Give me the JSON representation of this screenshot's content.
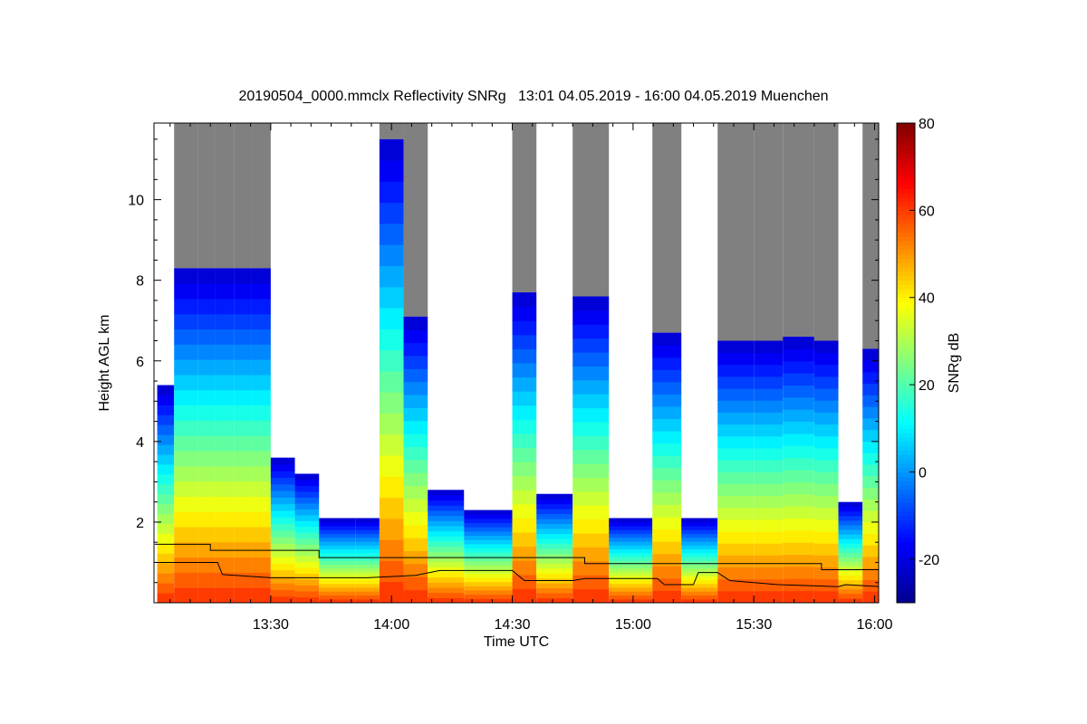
{
  "chart_data": {
    "type": "heatmap",
    "title": "20190504_0000.mmclx Reflectivity SNRg   13:01 04.05.2019 - 16:00 04.05.2019 Muenchen",
    "xlabel": "Time UTC",
    "ylabel": "Height AGL km",
    "colorbar_label": "SNRg dB",
    "x_range_min_utc": [
      13.0167,
      16.0167
    ],
    "y_range_km": [
      0,
      11.9
    ],
    "x_ticks": [
      {
        "label": "13:30",
        "value": 13.5
      },
      {
        "label": "14:00",
        "value": 14.0
      },
      {
        "label": "14:30",
        "value": 14.5
      },
      {
        "label": "15:00",
        "value": 15.0
      },
      {
        "label": "15:30",
        "value": 15.5
      },
      {
        "label": "16:00",
        "value": 16.0
      }
    ],
    "y_ticks": [
      {
        "label": "2",
        "value": 2
      },
      {
        "label": "4",
        "value": 4
      },
      {
        "label": "6",
        "value": 6
      },
      {
        "label": "8",
        "value": 8
      },
      {
        "label": "10",
        "value": 10
      }
    ],
    "colorbar_range": [
      -30,
      80
    ],
    "colorbar_ticks": [
      "-20",
      "0",
      "20",
      "40",
      "60",
      "80"
    ],
    "colorbar_tick_values": [
      -20,
      0,
      20,
      40,
      60,
      80
    ],
    "colormap": [
      "#00008f",
      "#0000ff",
      "#0080ff",
      "#00ffff",
      "#80ff80",
      "#ffff00",
      "#ff8000",
      "#ff0000",
      "#800000"
    ],
    "no_data_color": "#808080",
    "echo_tops_km": [
      {
        "t": 13.03,
        "top": 5.4
      },
      {
        "t": 13.1,
        "top": 8.3
      },
      {
        "t": 13.2,
        "top": 8.3
      },
      {
        "t": 13.27,
        "top": 8.3
      },
      {
        "t": 13.35,
        "top": 8.3
      },
      {
        "t": 13.42,
        "top": 8.3
      },
      {
        "t": 13.5,
        "top": 3.6
      },
      {
        "t": 13.6,
        "top": 3.2
      },
      {
        "t": 13.7,
        "top": 2.1
      },
      {
        "t": 13.85,
        "top": 2.1
      },
      {
        "t": 13.95,
        "top": 11.5
      },
      {
        "t": 14.05,
        "top": 7.1
      },
      {
        "t": 14.15,
        "top": 2.8
      },
      {
        "t": 14.3,
        "top": 2.3
      },
      {
        "t": 14.5,
        "top": 7.7
      },
      {
        "t": 14.6,
        "top": 2.7
      },
      {
        "t": 14.75,
        "top": 7.6
      },
      {
        "t": 14.9,
        "top": 2.1
      },
      {
        "t": 15.08,
        "top": 6.7
      },
      {
        "t": 15.2,
        "top": 2.1
      },
      {
        "t": 15.35,
        "top": 6.5
      },
      {
        "t": 15.5,
        "top": 6.5
      },
      {
        "t": 15.62,
        "top": 6.6
      },
      {
        "t": 15.75,
        "top": 6.5
      },
      {
        "t": 15.85,
        "top": 2.5
      },
      {
        "t": 15.95,
        "top": 6.3
      }
    ],
    "boundary_layer_lines_km": {
      "upper": [
        {
          "t": 13.02,
          "h": 1.45
        },
        {
          "t": 13.25,
          "h": 1.45
        },
        {
          "t": 13.25,
          "h": 1.3
        },
        {
          "t": 13.7,
          "h": 1.3
        },
        {
          "t": 13.7,
          "h": 1.12
        },
        {
          "t": 14.8,
          "h": 1.12
        },
        {
          "t": 14.8,
          "h": 0.97
        },
        {
          "t": 15.78,
          "h": 0.97
        },
        {
          "t": 15.78,
          "h": 0.82
        },
        {
          "t": 16.02,
          "h": 0.82
        }
      ],
      "lower": [
        {
          "t": 13.02,
          "h": 1.0
        },
        {
          "t": 13.28,
          "h": 1.0
        },
        {
          "t": 13.3,
          "h": 0.7
        },
        {
          "t": 13.5,
          "h": 0.62
        },
        {
          "t": 13.9,
          "h": 0.62
        },
        {
          "t": 14.1,
          "h": 0.68
        },
        {
          "t": 14.2,
          "h": 0.8
        },
        {
          "t": 14.5,
          "h": 0.8
        },
        {
          "t": 14.55,
          "h": 0.55
        },
        {
          "t": 14.75,
          "h": 0.55
        },
        {
          "t": 14.8,
          "h": 0.6
        },
        {
          "t": 15.1,
          "h": 0.6
        },
        {
          "t": 15.13,
          "h": 0.45
        },
        {
          "t": 15.25,
          "h": 0.45
        },
        {
          "t": 15.27,
          "h": 0.75
        },
        {
          "t": 15.35,
          "h": 0.75
        },
        {
          "t": 15.4,
          "h": 0.55
        },
        {
          "t": 15.6,
          "h": 0.45
        },
        {
          "t": 15.85,
          "h": 0.4
        },
        {
          "t": 15.88,
          "h": 0.45
        },
        {
          "t": 16.02,
          "h": 0.4
        }
      ]
    }
  }
}
